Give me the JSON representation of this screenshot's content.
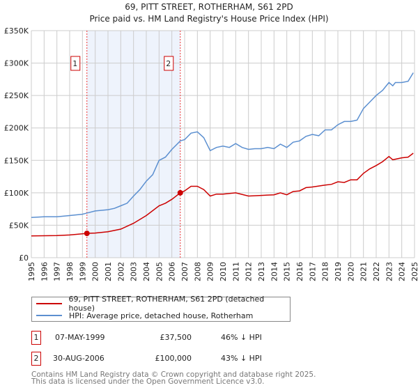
{
  "chart_data": {
    "type": "line",
    "title": "69, PITT STREET, ROTHERHAM, S61 2PD",
    "subtitle": "Price paid vs. HM Land Registry's House Price Index (HPI)",
    "xlim": [
      1995,
      2025
    ],
    "ylim": [
      0,
      350000
    ],
    "yticks": [
      0,
      50000,
      100000,
      150000,
      200000,
      250000,
      300000,
      350000
    ],
    "ytick_labels": [
      "£0",
      "£50K",
      "£100K",
      "£150K",
      "£200K",
      "£250K",
      "£300K",
      "£350K"
    ],
    "xtick_labels": [
      "1995",
      "1996",
      "1997",
      "1998",
      "1999",
      "2000",
      "2001",
      "2002",
      "2003",
      "2004",
      "2005",
      "2006",
      "2007",
      "2008",
      "2009",
      "2010",
      "2011",
      "2012",
      "2013",
      "2014",
      "2015",
      "2016",
      "2017",
      "2018",
      "2019",
      "2020",
      "2021",
      "2022",
      "2023",
      "2024",
      "2025"
    ],
    "grid": true,
    "series": [
      {
        "name": "69, PITT STREET, ROTHERHAM, S61 2PD (detached house)",
        "color": "#cc0000",
        "x": [
          1995,
          1997,
          1998,
          1999.35,
          2000,
          2001,
          2002,
          2003,
          2004,
          2005,
          2005.5,
          2006,
          2006.66,
          2007,
          2007.5,
          2008,
          2008.5,
          2009,
          2009.5,
          2010,
          2011,
          2012,
          2013,
          2014,
          2014.5,
          2015,
          2015.5,
          2016,
          2016.5,
          2017,
          2018,
          2018.5,
          2019,
          2019.5,
          2020,
          2020.5,
          2021,
          2021.5,
          2022,
          2022.5,
          2023,
          2023.3,
          2024,
          2024.5,
          2024.9
        ],
        "y": [
          33500,
          34000,
          35000,
          37500,
          38000,
          40000,
          44000,
          53000,
          65000,
          80000,
          84000,
          90000,
          100000,
          103000,
          110000,
          110000,
          105000,
          95000,
          98000,
          98000,
          100000,
          95000,
          96000,
          97000,
          100000,
          97000,
          102000,
          103000,
          108000,
          109000,
          112000,
          113000,
          117000,
          116000,
          120000,
          120000,
          130000,
          137000,
          142000,
          148000,
          156000,
          151000,
          154000,
          155000,
          161000
        ]
      },
      {
        "name": "HPI: Average price, detached house, Rotherham",
        "color": "#5b8fd0",
        "x": [
          1995,
          1996,
          1997,
          1998,
          1999,
          1999.4,
          2000,
          2001,
          2001.5,
          2002,
          2002.5,
          2003,
          2003.5,
          2004,
          2004.5,
          2005,
          2005.5,
          2006,
          2006.66,
          2007,
          2007.5,
          2008,
          2008.5,
          2009,
          2009.5,
          2010,
          2010.5,
          2011,
          2011.5,
          2012,
          2012.5,
          2013,
          2013.5,
          2014,
          2014.5,
          2015,
          2015.5,
          2016,
          2016.5,
          2017,
          2017.5,
          2018,
          2018.5,
          2019,
          2019.5,
          2020,
          2020.5,
          2021,
          2021.5,
          2022,
          2022.5,
          2023,
          2023.3,
          2023.5,
          2024,
          2024.5,
          2024.9
        ],
        "y": [
          62000,
          63000,
          63000,
          65000,
          67000,
          69000,
          72000,
          74000,
          76000,
          80000,
          84000,
          95000,
          105000,
          118000,
          128000,
          150000,
          155000,
          167000,
          180000,
          182000,
          192000,
          194000,
          185000,
          165000,
          170000,
          172000,
          170000,
          176000,
          170000,
          167000,
          168000,
          168000,
          170000,
          168000,
          175000,
          170000,
          178000,
          180000,
          187000,
          190000,
          188000,
          197000,
          197000,
          205000,
          210000,
          210000,
          212000,
          230000,
          240000,
          250000,
          258000,
          270000,
          265000,
          270000,
          270000,
          272000,
          285000
        ]
      }
    ],
    "sales": [
      {
        "label": "1",
        "x": 1999.35,
        "y": 37500
      },
      {
        "label": "2",
        "x": 2006.66,
        "y": 100000
      }
    ],
    "shade": [
      1999.35,
      2006.66
    ]
  },
  "legend": {
    "items": [
      "69, PITT STREET, ROTHERHAM, S61 2PD (detached house)",
      "HPI: Average price, detached house, Rotherham"
    ]
  },
  "transactions": [
    {
      "num": "1",
      "date": "07-MAY-1999",
      "price": "£37,500",
      "hpi": "46% ↓ HPI"
    },
    {
      "num": "2",
      "date": "30-AUG-2006",
      "price": "£100,000",
      "hpi": "43% ↓ HPI"
    }
  ],
  "footer": {
    "line1": "Contains HM Land Registry data © Crown copyright and database right 2025.",
    "line2": "This data is licensed under the Open Government Licence v3.0."
  }
}
